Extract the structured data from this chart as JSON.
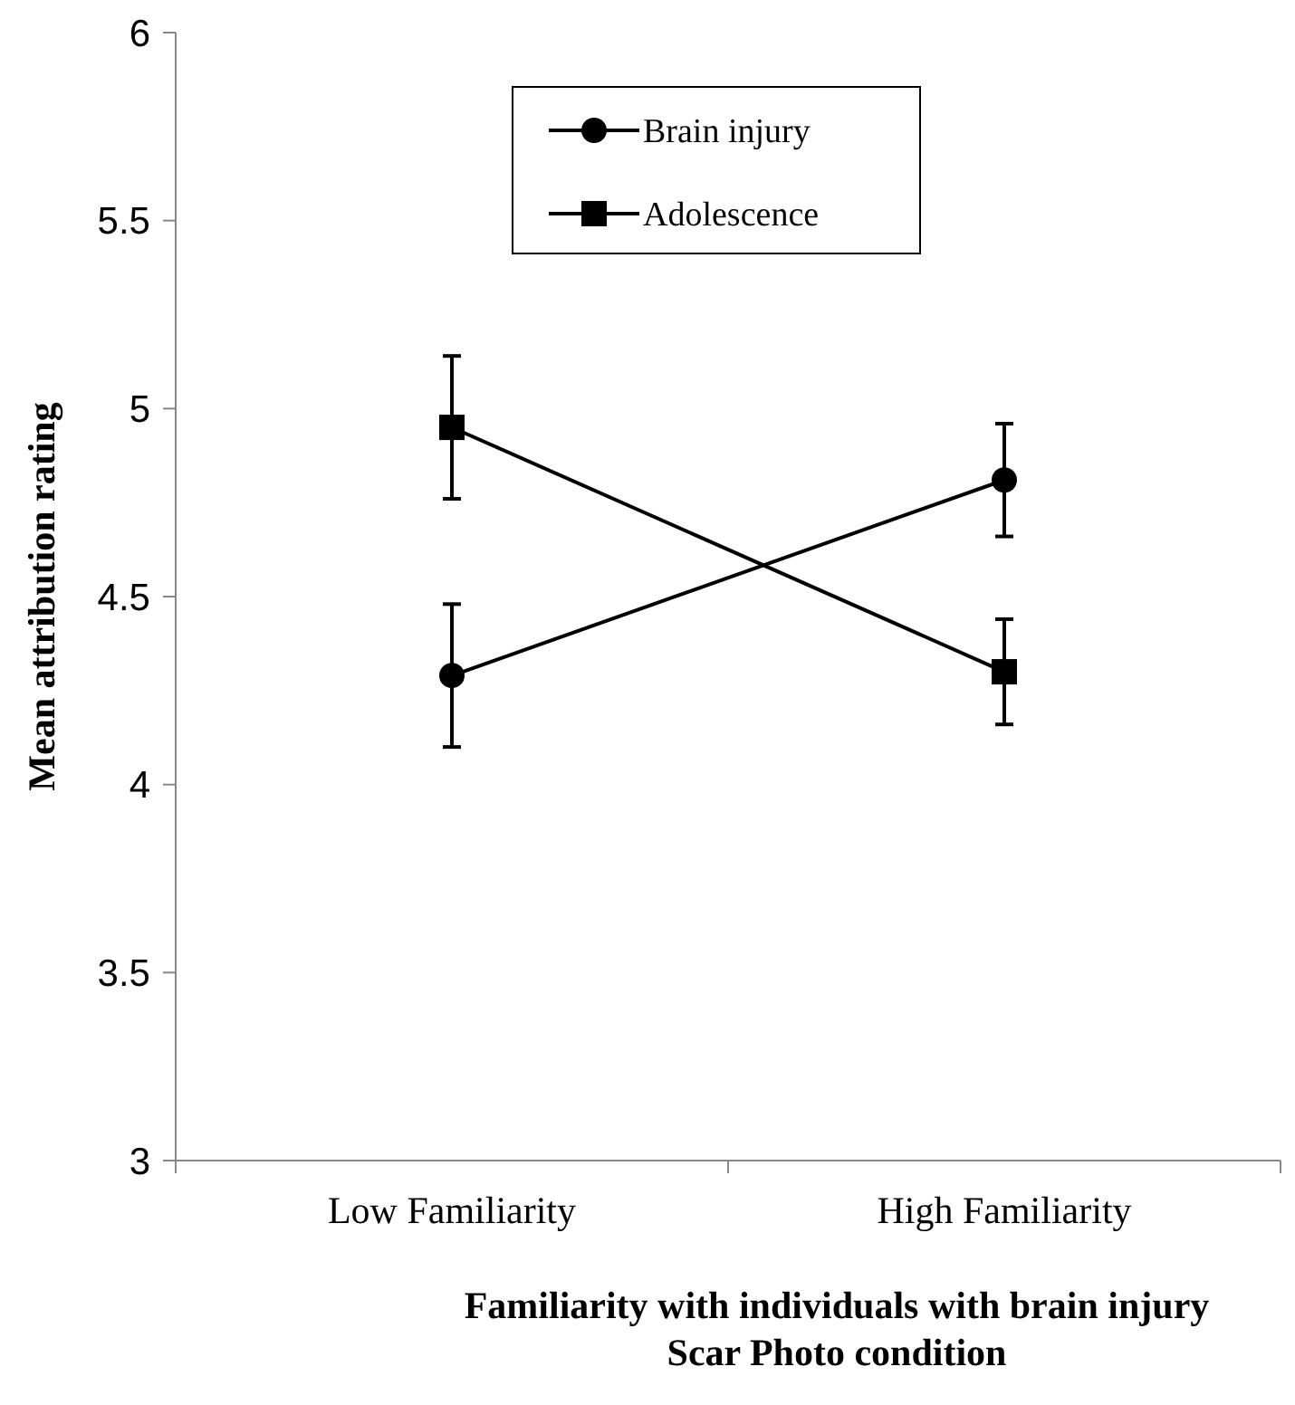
{
  "chart_data": {
    "type": "line",
    "xlabel": "Familiarity with individuals with brain injury\nScar Photo condition",
    "ylabel": "Mean attribution rating",
    "categories": [
      "Low Familiarity",
      "High Familiarity"
    ],
    "series": [
      {
        "name": "Brain injury",
        "color": "#000000",
        "marker": "circle",
        "values": [
          4.29,
          4.81
        ],
        "errors": [
          0.19,
          0.15
        ]
      },
      {
        "name": "Adolescence",
        "color": "#000000",
        "marker": "square",
        "values": [
          4.95,
          4.3
        ],
        "errors": [
          0.19,
          0.14
        ]
      }
    ],
    "ylim": [
      3,
      6
    ],
    "yticks": [
      3,
      3.5,
      4,
      4.5,
      5,
      5.5,
      6
    ],
    "grid": false,
    "legend": "top"
  }
}
